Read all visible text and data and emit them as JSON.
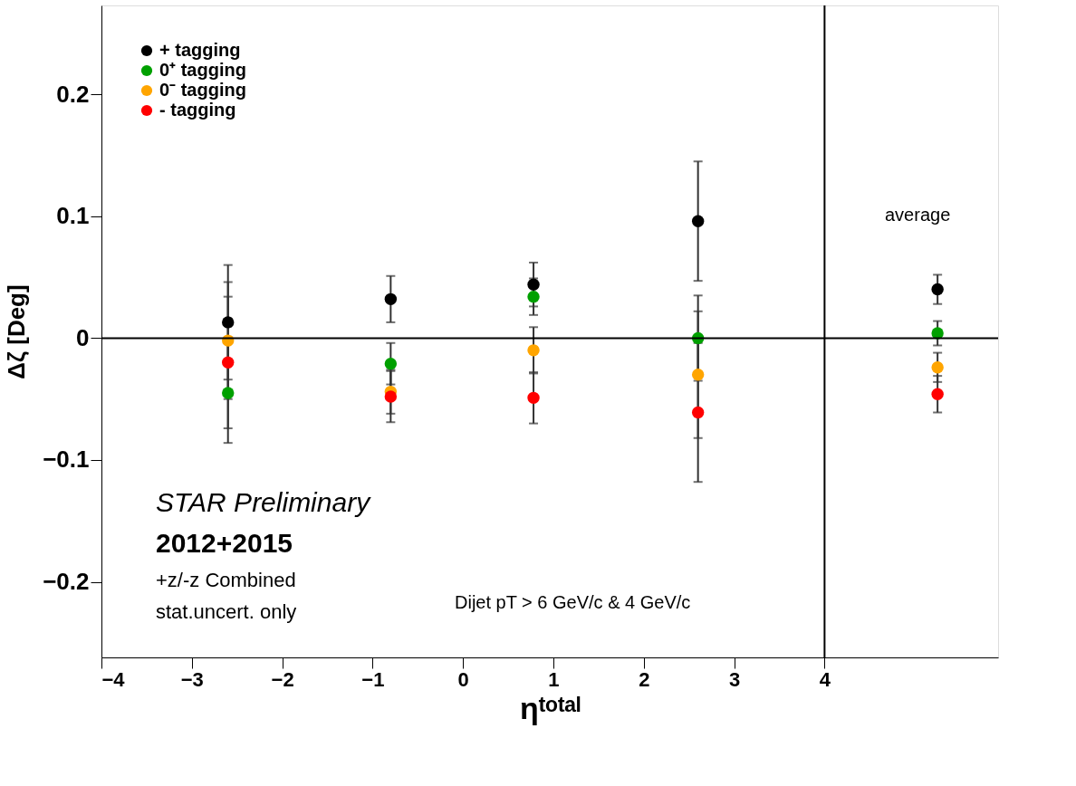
{
  "chart_data": {
    "type": "scatter",
    "xlabel": "ηᵗᵒᵗᵃˡ",
    "ylabel": "Δζ [Deg]",
    "x": [
      -2.6,
      -0.8,
      0.78,
      2.6,
      5.25
    ],
    "series": [
      {
        "name": "+ tagging",
        "color": "#000000",
        "values": [
          0.013,
          0.032,
          0.044,
          0.096,
          0.04
        ],
        "errors": [
          0.047,
          0.019,
          0.018,
          0.049,
          0.012
        ]
      },
      {
        "name": "0⁺ tagging",
        "color": "#00a000",
        "values": [
          -0.045,
          -0.021,
          0.034,
          0.0,
          0.004
        ],
        "errors": [
          0.041,
          0.017,
          0.015,
          0.035,
          0.01
        ]
      },
      {
        "name": "0⁻ tagging",
        "color": "#ffa500",
        "values": [
          -0.002,
          -0.044,
          -0.01,
          -0.03,
          -0.024
        ],
        "errors": [
          0.048,
          0.018,
          0.019,
          0.052,
          0.012
        ]
      },
      {
        "name": "- tagging",
        "color": "#ff0000",
        "values": [
          -0.02,
          -0.048,
          -0.049,
          -0.061,
          -0.046
        ],
        "errors": [
          0.054,
          0.021,
          0.021,
          0.057,
          0.015
        ]
      }
    ],
    "xlim": [
      -4,
      5.92
    ],
    "ylim": [
      -0.262,
      0.273
    ],
    "xticks": [
      {
        "value": -4,
        "label": "−4"
      },
      {
        "value": -3,
        "label": "−3"
      },
      {
        "value": -2,
        "label": "−2"
      },
      {
        "value": -1,
        "label": "−1"
      },
      0,
      1,
      2,
      3,
      4
    ],
    "yticks": [
      {
        "value": -0.2,
        "label": "−0.2"
      },
      {
        "value": -0.1,
        "label": "−0.1"
      },
      0,
      0.1,
      0.2
    ],
    "ref_lines": [
      {
        "axis": "y",
        "value": 0,
        "color": "#000000"
      },
      {
        "axis": "x",
        "value": 4,
        "color": "#000000"
      }
    ],
    "annotations": [
      "average",
      "STAR Preliminary",
      "2012+2015",
      "+z/-z Combined",
      "stat.uncert. only",
      "Dijet pT > 6 GeV/c & 4 GeV/c"
    ],
    "legend": "top left",
    "marker": "circle",
    "grid": false
  }
}
